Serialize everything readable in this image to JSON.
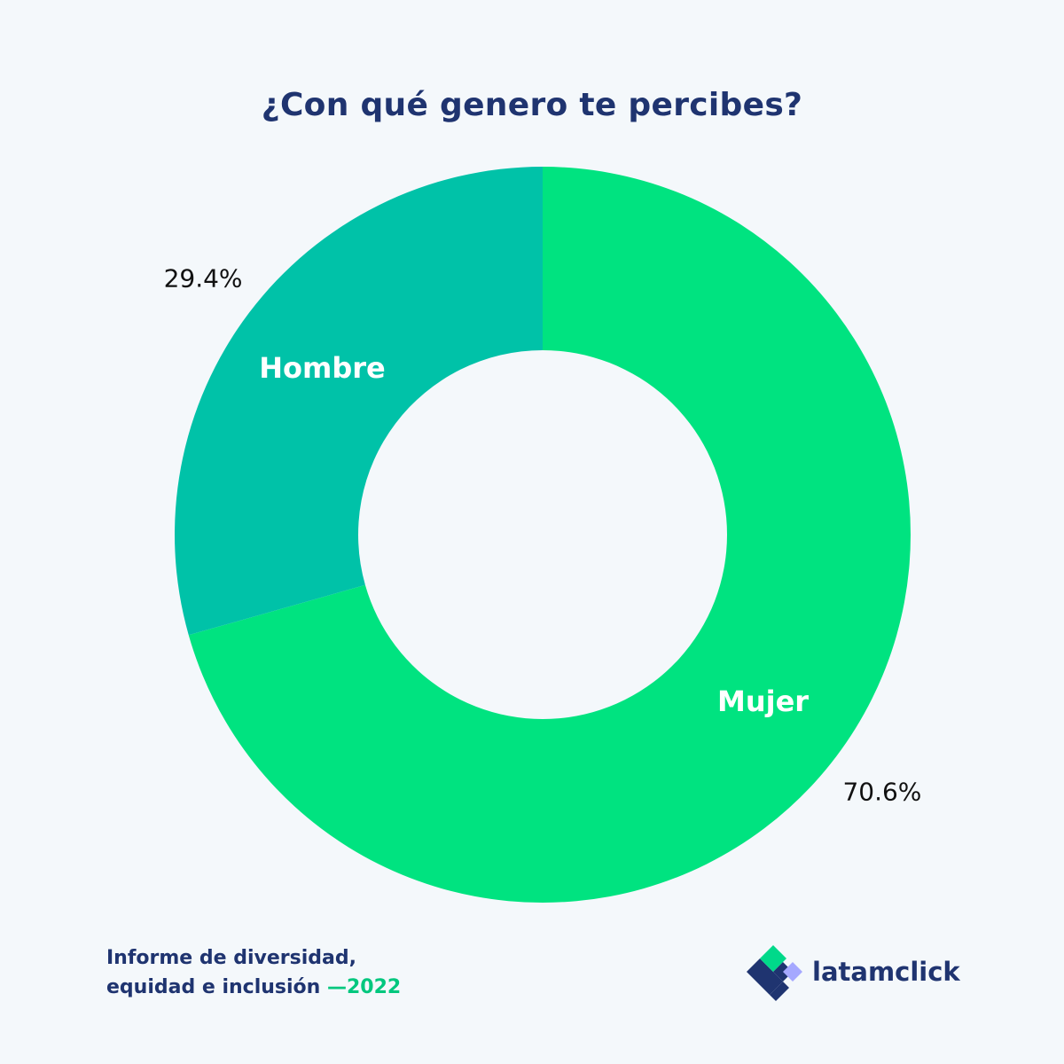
{
  "title": "¿Con qué genero te percibes?",
  "colors": {
    "background": "#f4f8fb",
    "title": "#1f3470",
    "accent": "#00c77e"
  },
  "chart_data": {
    "type": "pie",
    "title": "¿Con qué genero te percibes?",
    "donut": true,
    "slices": [
      {
        "name": "Mujer",
        "value": 70.6,
        "label": "70.6%",
        "color": "#00e380"
      },
      {
        "name": "Hombre",
        "value": 29.4,
        "label": "29.4%",
        "color": "#00c2a8"
      }
    ]
  },
  "footer": {
    "report_line1": "Informe de diversidad,",
    "report_line2": "equidad e inclusión",
    "year": "—2022"
  },
  "brand": {
    "name": "latamclick",
    "logo_icon": "latamclick-logo-icon"
  }
}
